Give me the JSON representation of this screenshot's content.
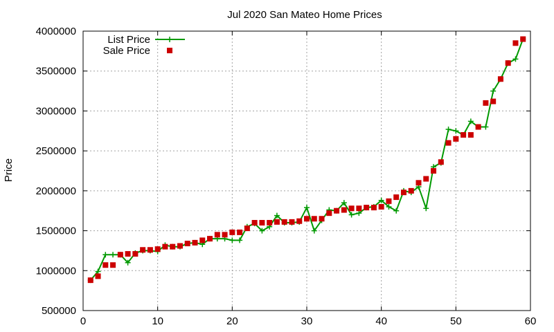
{
  "chart_data": {
    "type": "line",
    "title": "Jul 2020 San Mateo Home Prices",
    "xlabel": "",
    "ylabel": "Price",
    "xlim": [
      0,
      60
    ],
    "ylim": [
      500000,
      4000000
    ],
    "x_ticks": [
      0,
      10,
      20,
      30,
      40,
      50,
      60
    ],
    "y_ticks": [
      500000,
      1000000,
      1500000,
      2000000,
      2500000,
      3000000,
      3500000,
      4000000
    ],
    "grid": true,
    "legend_position": "top-left",
    "series": [
      {
        "name": "List Price",
        "style": "line-with-plus-markers",
        "color": "#009900",
        "points": [
          [
            1,
            880000
          ],
          [
            2,
            990000
          ],
          [
            3,
            1200000
          ],
          [
            4,
            1200000
          ],
          [
            5,
            1200000
          ],
          [
            6,
            1100000
          ],
          [
            7,
            1220000
          ],
          [
            8,
            1250000
          ],
          [
            9,
            1250000
          ],
          [
            10,
            1240000
          ],
          [
            11,
            1320000
          ],
          [
            12,
            1300000
          ],
          [
            13,
            1300000
          ],
          [
            14,
            1340000
          ],
          [
            15,
            1350000
          ],
          [
            16,
            1330000
          ],
          [
            17,
            1400000
          ],
          [
            18,
            1400000
          ],
          [
            19,
            1400000
          ],
          [
            20,
            1380000
          ],
          [
            21,
            1380000
          ],
          [
            22,
            1550000
          ],
          [
            23,
            1590000
          ],
          [
            24,
            1500000
          ],
          [
            25,
            1550000
          ],
          [
            26,
            1690000
          ],
          [
            27,
            1600000
          ],
          [
            28,
            1600000
          ],
          [
            29,
            1610000
          ],
          [
            30,
            1790000
          ],
          [
            31,
            1500000
          ],
          [
            32,
            1630000
          ],
          [
            33,
            1760000
          ],
          [
            34,
            1750000
          ],
          [
            35,
            1850000
          ],
          [
            36,
            1700000
          ],
          [
            37,
            1720000
          ],
          [
            38,
            1790000
          ],
          [
            39,
            1800000
          ],
          [
            40,
            1880000
          ],
          [
            41,
            1800000
          ],
          [
            42,
            1750000
          ],
          [
            43,
            2000000
          ],
          [
            44,
            1980000
          ],
          [
            45,
            2050000
          ],
          [
            46,
            1780000
          ],
          [
            47,
            2300000
          ],
          [
            48,
            2350000
          ],
          [
            49,
            2770000
          ],
          [
            50,
            2750000
          ],
          [
            51,
            2700000
          ],
          [
            52,
            2870000
          ],
          [
            53,
            2800000
          ],
          [
            54,
            2800000
          ],
          [
            55,
            3250000
          ],
          [
            56,
            3400000
          ],
          [
            57,
            3600000
          ],
          [
            58,
            3650000
          ],
          [
            59,
            3900000
          ]
        ]
      },
      {
        "name": "Sale Price",
        "style": "square-markers",
        "color": "#cc0000",
        "points": [
          [
            1,
            880000
          ],
          [
            2,
            930000
          ],
          [
            3,
            1070000
          ],
          [
            4,
            1070000
          ],
          [
            5,
            1200000
          ],
          [
            6,
            1210000
          ],
          [
            7,
            1210000
          ],
          [
            8,
            1260000
          ],
          [
            9,
            1260000
          ],
          [
            10,
            1270000
          ],
          [
            11,
            1300000
          ],
          [
            12,
            1300000
          ],
          [
            13,
            1310000
          ],
          [
            14,
            1340000
          ],
          [
            15,
            1350000
          ],
          [
            16,
            1380000
          ],
          [
            17,
            1400000
          ],
          [
            18,
            1450000
          ],
          [
            19,
            1450000
          ],
          [
            20,
            1480000
          ],
          [
            21,
            1480000
          ],
          [
            22,
            1530000
          ],
          [
            23,
            1600000
          ],
          [
            24,
            1600000
          ],
          [
            25,
            1600000
          ],
          [
            26,
            1610000
          ],
          [
            27,
            1610000
          ],
          [
            28,
            1610000
          ],
          [
            29,
            1620000
          ],
          [
            30,
            1650000
          ],
          [
            31,
            1650000
          ],
          [
            32,
            1650000
          ],
          [
            33,
            1720000
          ],
          [
            34,
            1750000
          ],
          [
            35,
            1760000
          ],
          [
            36,
            1780000
          ],
          [
            37,
            1780000
          ],
          [
            38,
            1790000
          ],
          [
            39,
            1790000
          ],
          [
            40,
            1800000
          ],
          [
            41,
            1870000
          ],
          [
            42,
            1920000
          ],
          [
            43,
            1980000
          ],
          [
            44,
            2000000
          ],
          [
            45,
            2100000
          ],
          [
            46,
            2150000
          ],
          [
            47,
            2250000
          ],
          [
            48,
            2360000
          ],
          [
            49,
            2600000
          ],
          [
            50,
            2650000
          ],
          [
            51,
            2700000
          ],
          [
            52,
            2700000
          ],
          [
            53,
            2800000
          ],
          [
            54,
            3100000
          ],
          [
            55,
            3120000
          ],
          [
            56,
            3400000
          ],
          [
            57,
            3600000
          ],
          [
            58,
            3850000
          ],
          [
            59,
            3900000
          ]
        ]
      }
    ]
  }
}
